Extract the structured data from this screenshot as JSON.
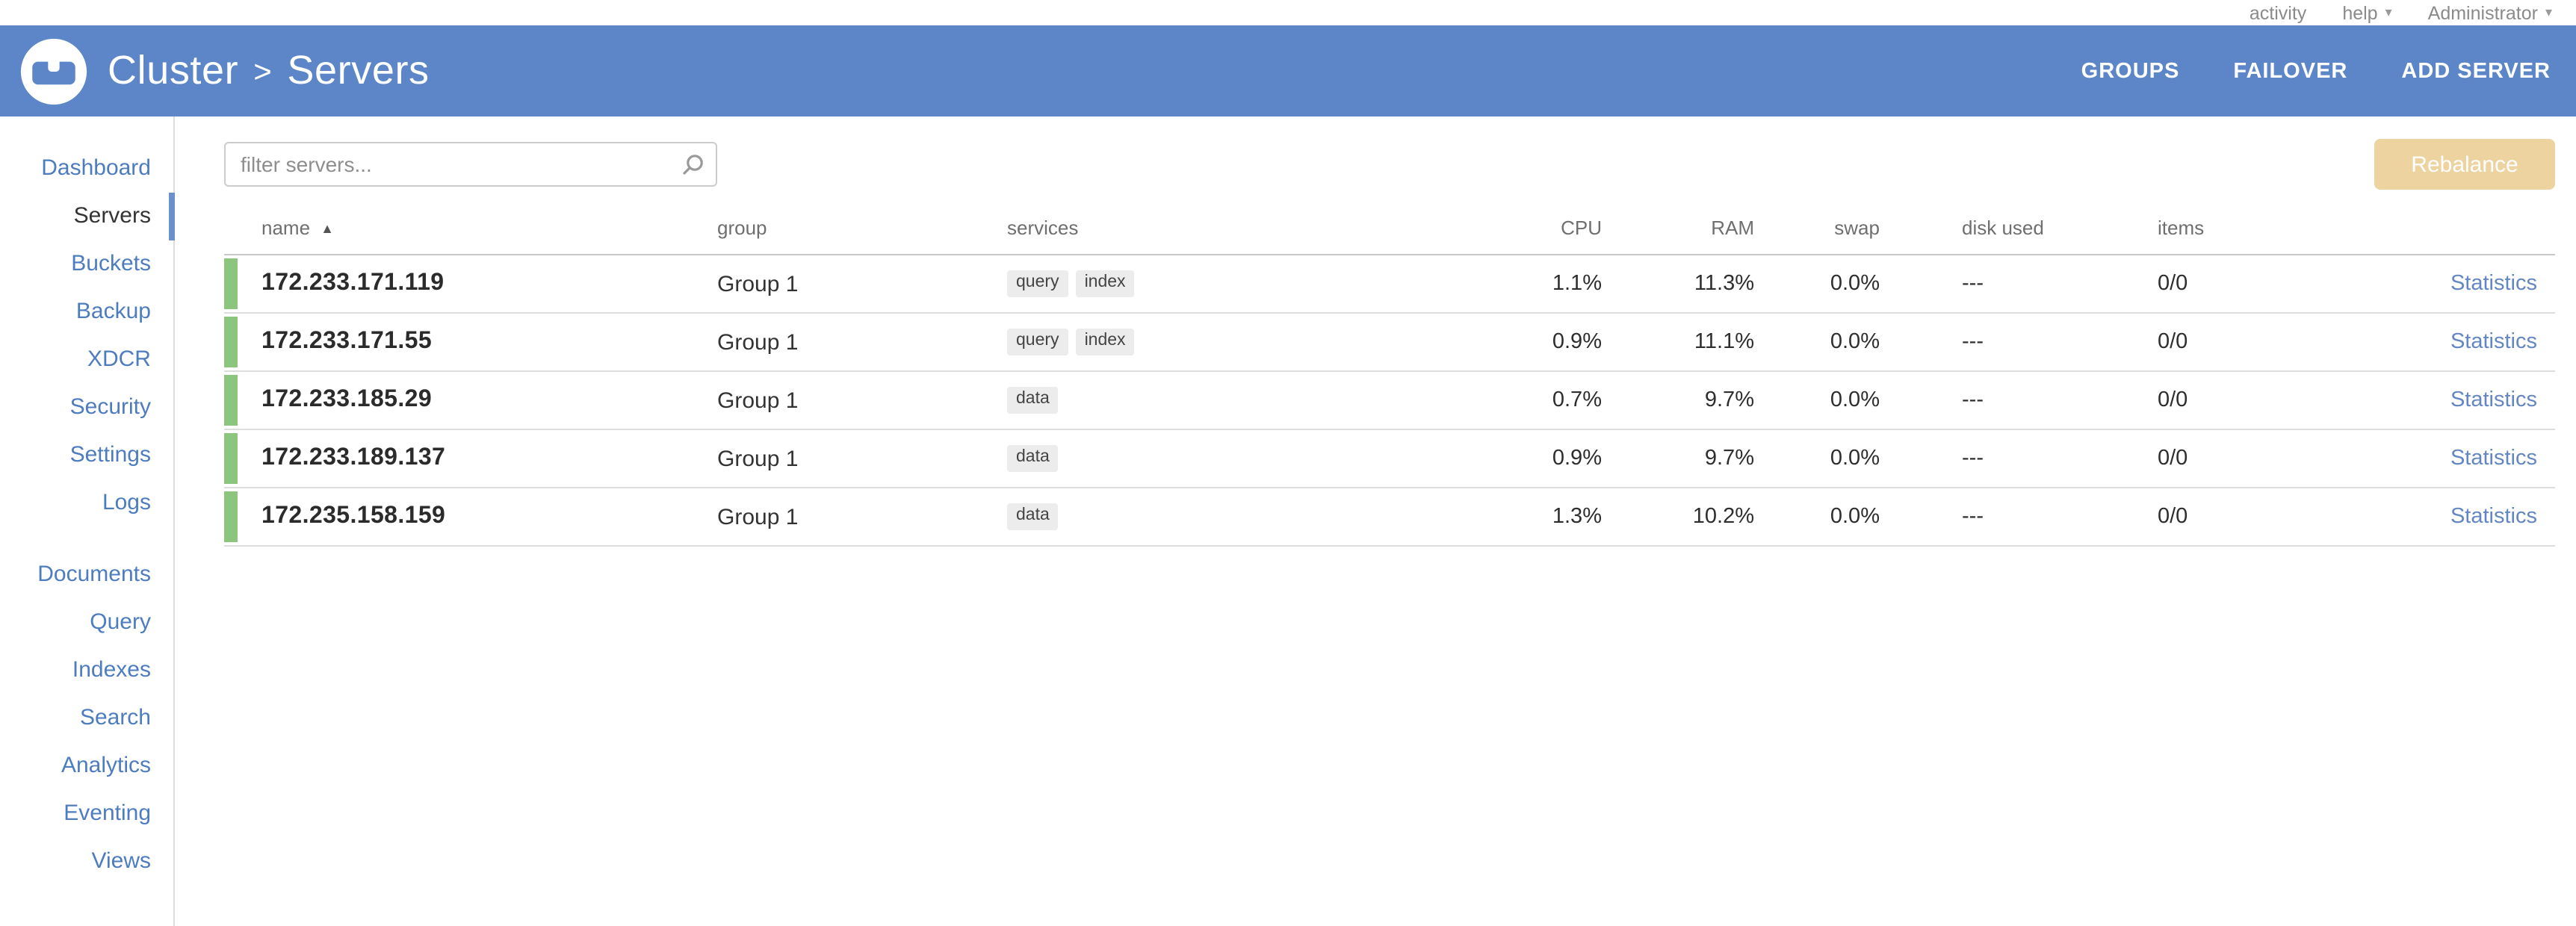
{
  "topbar": {
    "links": [
      {
        "label": "activity",
        "caret": false
      },
      {
        "label": "help",
        "caret": true
      },
      {
        "label": "Administrator",
        "caret": true
      }
    ]
  },
  "header": {
    "breadcrumb": {
      "root": "Cluster",
      "separator": ">",
      "current": "Servers"
    },
    "actions": [
      "GROUPS",
      "FAILOVER",
      "ADD SERVER"
    ]
  },
  "sidebar": {
    "active": "Servers",
    "primary": [
      "Dashboard",
      "Servers",
      "Buckets",
      "Backup",
      "XDCR",
      "Security",
      "Settings",
      "Logs"
    ],
    "secondary": [
      "Documents",
      "Query",
      "Indexes",
      "Search",
      "Analytics",
      "Eventing",
      "Views"
    ]
  },
  "toolbar": {
    "filter_placeholder": "filter servers...",
    "rebalance_label": "Rebalance"
  },
  "table": {
    "columns": [
      "name",
      "group",
      "services",
      "CPU",
      "RAM",
      "swap",
      "disk used",
      "items",
      ""
    ],
    "sort": {
      "column": "name",
      "direction": "ascending"
    },
    "rows": [
      {
        "name": "172.233.171.119",
        "group": "Group 1",
        "services": [
          "query",
          "index"
        ],
        "cpu": "1.1%",
        "ram": "11.3%",
        "swap": "0.0%",
        "disk_used": "---",
        "items": "0/0",
        "statistics_label": "Statistics"
      },
      {
        "name": "172.233.171.55",
        "group": "Group 1",
        "services": [
          "query",
          "index"
        ],
        "cpu": "0.9%",
        "ram": "11.1%",
        "swap": "0.0%",
        "disk_used": "---",
        "items": "0/0",
        "statistics_label": "Statistics"
      },
      {
        "name": "172.233.185.29",
        "group": "Group 1",
        "services": [
          "data"
        ],
        "cpu": "0.7%",
        "ram": "9.7%",
        "swap": "0.0%",
        "disk_used": "---",
        "items": "0/0",
        "statistics_label": "Statistics"
      },
      {
        "name": "172.233.189.137",
        "group": "Group 1",
        "services": [
          "data"
        ],
        "cpu": "0.9%",
        "ram": "9.7%",
        "swap": "0.0%",
        "disk_used": "---",
        "items": "0/0",
        "statistics_label": "Statistics"
      },
      {
        "name": "172.235.158.159",
        "group": "Group 1",
        "services": [
          "data"
        ],
        "cpu": "1.3%",
        "ram": "10.2%",
        "swap": "0.0%",
        "disk_used": "---",
        "items": "0/0",
        "statistics_label": "Statistics"
      }
    ]
  },
  "colors": {
    "header_blue": "#5C86C7",
    "sidebar_link_blue": "#4D7CBF",
    "active_item_text": "#333333",
    "active_marker_blue": "#6B91CD",
    "health_green": "#8CC57D",
    "rebalance_button_bg": "#EDD3A0",
    "statistics_link_blue": "#6487C3",
    "service_badge_bg": "#ECECEC"
  }
}
